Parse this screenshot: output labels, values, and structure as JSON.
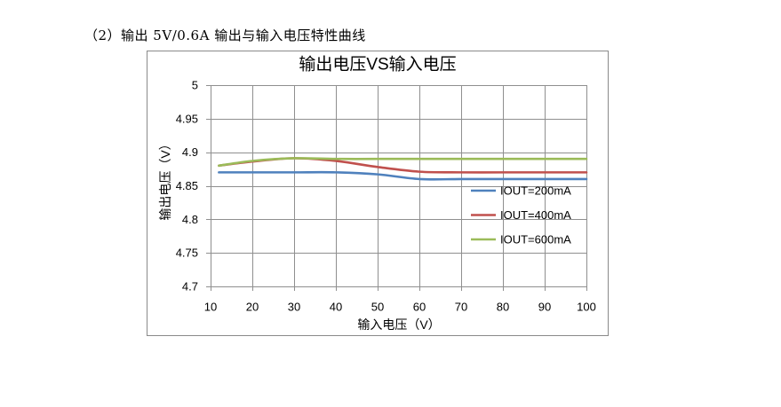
{
  "document": {
    "caption": "（2）输出 5V/0.6A 输出与输入电压特性曲线"
  },
  "chart_data": {
    "type": "line",
    "title": "输出电压VS输入电压",
    "xlabel": "输入电压（V）",
    "ylabel": "输出电压（V）",
    "xlim": [
      10,
      100
    ],
    "ylim": [
      4.7,
      5
    ],
    "xticks": [
      "10",
      "20",
      "30",
      "40",
      "50",
      "60",
      "70",
      "80",
      "90",
      "100"
    ],
    "yticks": [
      "5",
      "4.95",
      "4.9",
      "4.85",
      "4.8",
      "4.75",
      "4.7"
    ],
    "grid": true,
    "smooth": true,
    "legend_position": "inside-right",
    "x": [
      12,
      20,
      30,
      40,
      50,
      60,
      70,
      80,
      90,
      100
    ],
    "series": [
      {
        "name": "IOUT=200mA",
        "color": "#4F81BD",
        "values": [
          4.87,
          4.87,
          4.87,
          4.87,
          4.867,
          4.86,
          4.86,
          4.86,
          4.86,
          4.86
        ]
      },
      {
        "name": "IOUT=400mA",
        "color": "#C0504D",
        "values": [
          4.88,
          4.886,
          4.891,
          4.887,
          4.878,
          4.871,
          4.87,
          4.87,
          4.87,
          4.87
        ]
      },
      {
        "name": "IOUT=600mA",
        "color": "#9BBB59",
        "values": [
          4.88,
          4.887,
          4.891,
          4.89,
          4.89,
          4.89,
          4.89,
          4.89,
          4.89,
          4.89
        ]
      }
    ]
  }
}
